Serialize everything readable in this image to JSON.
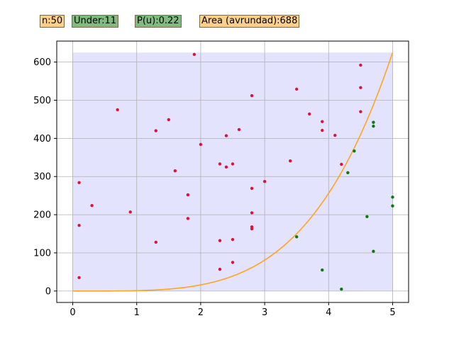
{
  "badges": {
    "n": "n:50",
    "under": "Under:11",
    "pu": "P(u):0.22",
    "area": "Area (avrundad):688"
  },
  "colors": {
    "badge_orange": "#fdcf88",
    "badge_green": "#7fba7f",
    "fill_region": "#e3e3fd",
    "curve": "#ffa51f",
    "above": "#dc143c",
    "below": "#0a7a0a",
    "grid": "#b0b0b0"
  },
  "chart_data": {
    "type": "scatter",
    "title": "",
    "xlabel": "",
    "ylabel": "",
    "xlim": [
      -0.25,
      5.25
    ],
    "ylim": [
      -30,
      655
    ],
    "xticks": [
      0,
      1,
      2,
      3,
      4,
      5
    ],
    "yticks": [
      0,
      100,
      200,
      300,
      400,
      500,
      600
    ],
    "grid": true,
    "region": {
      "x": [
        0,
        5
      ],
      "y": [
        0,
        625
      ]
    },
    "curve": {
      "x_start": 0,
      "x_end": 5,
      "y_end": 625
    },
    "series": [
      {
        "color_key": "above",
        "points": [
          [
            0.1,
            35
          ],
          [
            0.1,
            172
          ],
          [
            0.1,
            284
          ],
          [
            0.3,
            224
          ],
          [
            0.7,
            475
          ],
          [
            0.9,
            207
          ],
          [
            1.3,
            128
          ],
          [
            1.3,
            420
          ],
          [
            1.5,
            449
          ],
          [
            1.6,
            315
          ],
          [
            1.8,
            190
          ],
          [
            1.8,
            252
          ],
          [
            1.9,
            620
          ],
          [
            2.0,
            384
          ],
          [
            2.3,
            57
          ],
          [
            2.3,
            132
          ],
          [
            2.3,
            333
          ],
          [
            2.4,
            325
          ],
          [
            2.4,
            407
          ],
          [
            2.5,
            75
          ],
          [
            2.5,
            135
          ],
          [
            2.5,
            333
          ],
          [
            2.6,
            423
          ],
          [
            2.8,
            163
          ],
          [
            2.8,
            168
          ],
          [
            2.8,
            205
          ],
          [
            2.8,
            269
          ],
          [
            2.8,
            512
          ],
          [
            3.0,
            287
          ],
          [
            3.4,
            341
          ],
          [
            3.5,
            529
          ],
          [
            3.7,
            464
          ],
          [
            3.9,
            421
          ],
          [
            3.9,
            444
          ],
          [
            4.1,
            408
          ],
          [
            4.2,
            332
          ],
          [
            4.5,
            470
          ],
          [
            4.5,
            533
          ],
          [
            4.5,
            592
          ]
        ]
      },
      {
        "color_key": "below",
        "points": [
          [
            3.5,
            142
          ],
          [
            3.9,
            55
          ],
          [
            4.2,
            5
          ],
          [
            4.3,
            310
          ],
          [
            4.4,
            367
          ],
          [
            4.6,
            195
          ],
          [
            4.7,
            104
          ],
          [
            4.7,
            432
          ],
          [
            4.7,
            442
          ],
          [
            5.0,
            223
          ],
          [
            5.0,
            246
          ]
        ]
      }
    ]
  }
}
